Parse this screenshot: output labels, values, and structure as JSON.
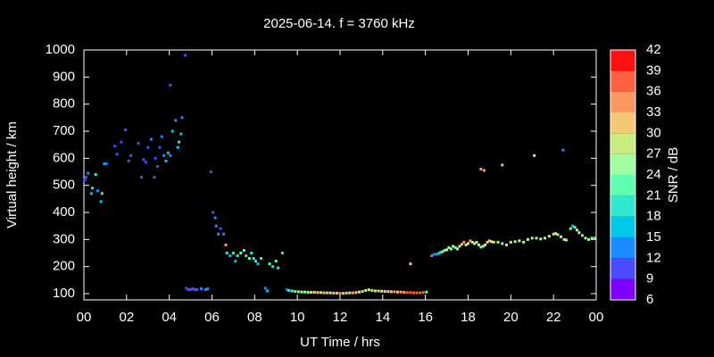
{
  "chart_data": {
    "type": "scatter",
    "title": "2025-06-14. f = 3760 kHz",
    "xlabel": "UT Time / hrs",
    "ylabel": "Virtual height / km",
    "clabel": "SNR / dB",
    "xlim": [
      0,
      24
    ],
    "xticks": [
      {
        "value": 0,
        "label": "00"
      },
      {
        "value": 2,
        "label": "02"
      },
      {
        "value": 4,
        "label": "04"
      },
      {
        "value": 6,
        "label": "06"
      },
      {
        "value": 8,
        "label": "08"
      },
      10,
      12,
      14,
      16,
      18,
      20,
      22,
      {
        "value": 24,
        "label": "00"
      }
    ],
    "ylim": [
      77,
      1000
    ],
    "yticks": [
      100,
      200,
      300,
      400,
      500,
      600,
      700,
      800,
      900,
      1000
    ],
    "clim": [
      6,
      42
    ],
    "cticks": [
      6,
      9,
      12,
      15,
      18,
      21,
      24,
      27,
      30,
      33,
      36,
      39,
      42
    ],
    "colors": [
      "#8000ff",
      "#4a4aff",
      "#1a8cff",
      "#00c8e8",
      "#30e8d0",
      "#60ffb0",
      "#a0ffa0",
      "#c8ec80",
      "#f5c878",
      "#ff9860",
      "#ff6040",
      "#ff1010"
    ],
    "x": [
      0.05,
      0.1,
      0.2,
      0.35,
      0.4,
      0.55,
      0.65,
      0.8,
      0.85,
      0.95,
      1.05,
      1.45,
      1.55,
      1.75,
      1.95,
      2.1,
      2.2,
      2.55,
      2.7,
      2.8,
      2.9,
      3.0,
      3.15,
      3.3,
      3.35,
      3.45,
      3.55,
      3.65,
      3.75,
      3.85,
      3.95,
      4.05,
      4.05,
      4.15,
      4.3,
      4.4,
      4.45,
      4.55,
      4.6,
      4.75,
      4.8,
      4.9,
      5.0,
      5.1,
      5.2,
      5.3,
      5.5,
      5.7,
      5.8,
      5.95,
      6.05,
      6.15,
      6.2,
      6.3,
      6.4,
      6.55,
      6.65,
      6.7,
      6.85,
      7.0,
      7.1,
      7.2,
      7.35,
      7.5,
      7.6,
      7.75,
      7.85,
      7.95,
      8.05,
      8.15,
      8.3,
      8.5,
      8.6,
      8.7,
      8.85,
      9.0,
      9.1,
      9.3,
      9.5,
      9.6,
      9.75,
      9.9,
      10.05,
      10.2,
      10.35,
      10.5,
      10.65,
      10.8,
      10.95,
      11.1,
      11.25,
      11.4,
      11.55,
      11.7,
      11.85,
      12.0,
      12.15,
      12.3,
      12.45,
      12.6,
      12.75,
      12.9,
      13.05,
      13.2,
      13.35,
      13.5,
      13.65,
      13.8,
      13.95,
      14.1,
      14.25,
      14.4,
      14.55,
      14.7,
      14.85,
      15.0,
      15.15,
      15.3,
      15.45,
      15.6,
      15.75,
      15.9,
      16.05,
      15.3,
      16.3,
      16.4,
      16.5,
      16.6,
      16.7,
      16.8,
      16.9,
      17.0,
      17.1,
      17.2,
      17.3,
      17.4,
      17.5,
      17.6,
      17.7,
      17.8,
      17.9,
      18.0,
      18.1,
      18.2,
      18.3,
      18.4,
      18.5,
      18.6,
      18.7,
      18.8,
      18.9,
      19.0,
      19.1,
      19.2,
      19.4,
      19.6,
      19.8,
      20.0,
      20.2,
      20.4,
      20.6,
      20.8,
      21.0,
      21.2,
      21.4,
      21.6,
      21.8,
      22.0,
      22.1,
      22.2,
      22.35,
      22.5,
      22.6,
      22.8,
      22.9,
      23.0,
      23.1,
      23.2,
      23.35,
      23.5,
      23.65,
      23.8,
      23.95,
      18.6,
      18.75,
      19.6,
      21.1,
      22.45
    ],
    "y": [
      520,
      530,
      545,
      470,
      490,
      540,
      480,
      440,
      470,
      580,
      580,
      645,
      615,
      660,
      705,
      590,
      610,
      655,
      530,
      595,
      585,
      640,
      670,
      530,
      600,
      570,
      640,
      680,
      610,
      590,
      620,
      610,
      870,
      700,
      740,
      640,
      660,
      690,
      750,
      980,
      120,
      115,
      115,
      118,
      115,
      115,
      118,
      115,
      118,
      550,
      400,
      380,
      350,
      320,
      340,
      320,
      280,
      250,
      240,
      250,
      220,
      240,
      250,
      260,
      240,
      230,
      250,
      230,
      220,
      210,
      230,
      120,
      110,
      210,
      200,
      220,
      195,
      250,
      115,
      112,
      110,
      108,
      107,
      106,
      106,
      105,
      105,
      105,
      104,
      104,
      103,
      103,
      103,
      102,
      102,
      101,
      101,
      102,
      103,
      103,
      104,
      106,
      108,
      112,
      114,
      112,
      110,
      110,
      109,
      108,
      108,
      107,
      107,
      106,
      106,
      105,
      104,
      104,
      103,
      103,
      103,
      104,
      106,
      210,
      240,
      245,
      245,
      248,
      252,
      255,
      260,
      262,
      270,
      265,
      275,
      270,
      265,
      275,
      282,
      290,
      280,
      285,
      295,
      290,
      285,
      290,
      280,
      272,
      275,
      280,
      290,
      295,
      292,
      290,
      290,
      285,
      280,
      290,
      292,
      295,
      290,
      300,
      305,
      305,
      302,
      305,
      312,
      320,
      322,
      318,
      310,
      300,
      298,
      340,
      350,
      345,
      335,
      325,
      315,
      305,
      300,
      305,
      305,
      560,
      555,
      575,
      610,
      630
    ],
    "snr": [
      11,
      11,
      14,
      17,
      20,
      20,
      14,
      17,
      20,
      14,
      14,
      11,
      11,
      11,
      11,
      11,
      11,
      11,
      11,
      11,
      11,
      11,
      14,
      11,
      11,
      11,
      11,
      14,
      14,
      17,
      17,
      14,
      11,
      17,
      14,
      17,
      20,
      17,
      14,
      11,
      11,
      11,
      11,
      11,
      11,
      11,
      14,
      14,
      14,
      11,
      11,
      14,
      14,
      14,
      11,
      14,
      35,
      20,
      17,
      20,
      17,
      20,
      23,
      23,
      20,
      23,
      20,
      20,
      20,
      17,
      20,
      14,
      17,
      23,
      20,
      23,
      20,
      20,
      11,
      20,
      23,
      23,
      23,
      26,
      26,
      26,
      29,
      32,
      32,
      29,
      32,
      32,
      29,
      32,
      32,
      35,
      32,
      32,
      29,
      35,
      32,
      29,
      32,
      29,
      26,
      29,
      29,
      32,
      29,
      32,
      32,
      32,
      35,
      32,
      35,
      35,
      38,
      38,
      38,
      38,
      38,
      38,
      23,
      32,
      38,
      14,
      14,
      17,
      20,
      23,
      23,
      26,
      26,
      29,
      26,
      23,
      26,
      29,
      32,
      35,
      26,
      29,
      35,
      29,
      26,
      29,
      26,
      23,
      26,
      29,
      32,
      32,
      29,
      29,
      29,
      26,
      29,
      29,
      29,
      26,
      29,
      26,
      29,
      26,
      29,
      26,
      29,
      32,
      29,
      26,
      26,
      26,
      29,
      23,
      17,
      23,
      26,
      26,
      23,
      29,
      26,
      26,
      29,
      35,
      35,
      32,
      29,
      14
    ]
  }
}
